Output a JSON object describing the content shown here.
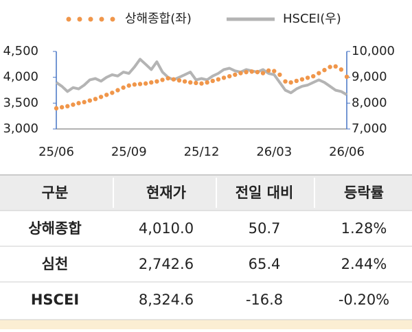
{
  "chart_data": {
    "type": "line",
    "categories": [
      "25/06",
      null,
      null,
      null,
      null,
      null,
      null,
      null,
      null,
      null,
      null,
      null,
      null,
      "25/09",
      null,
      null,
      null,
      null,
      null,
      null,
      null,
      null,
      null,
      null,
      null,
      null,
      "25/12",
      null,
      null,
      null,
      null,
      null,
      null,
      null,
      null,
      null,
      null,
      null,
      null,
      "26/03",
      null,
      null,
      null,
      null,
      null,
      null,
      null,
      null,
      null,
      null,
      null,
      null,
      "26/06"
    ],
    "series": [
      {
        "name": "상해종합(좌)",
        "color": "#f0964a",
        "style": "dots",
        "values": [
          3400,
          3420,
          3440,
          3470,
          3500,
          3520,
          3550,
          3580,
          3620,
          3660,
          3700,
          3750,
          3800,
          3840,
          3860,
          3870,
          3880,
          3900,
          3920,
          3950,
          3980,
          3960,
          3940,
          3920,
          3900,
          3890,
          3880,
          3900,
          3930,
          3960,
          3990,
          4020,
          4050,
          4080,
          4100,
          4110,
          4100,
          4080,
          4130,
          4120,
          4050,
          3920,
          3900,
          3930,
          3960,
          3990,
          4020,
          4080,
          4140,
          4200,
          4210,
          4150,
          4010
        ]
      },
      {
        "name": "HSCEI(우)",
        "color": "#b4b4b4",
        "style": "line",
        "axis": "y2",
        "values": [
          8800,
          8650,
          8450,
          8600,
          8550,
          8700,
          8900,
          8950,
          8850,
          9000,
          9100,
          9050,
          9200,
          9150,
          9400,
          9700,
          9500,
          9300,
          9600,
          9200,
          9000,
          8900,
          9000,
          9100,
          9200,
          8900,
          8950,
          8900,
          9050,
          9150,
          9300,
          9350,
          9250,
          9200,
          9300,
          9250,
          9200,
          9300,
          9150,
          9100,
          8800,
          8500,
          8400,
          8550,
          8650,
          8700,
          8800,
          8900,
          8800,
          8650,
          8500,
          8450,
          8325
        ]
      }
    ],
    "ylim": [
      3000,
      4500
    ],
    "yticks": [
      {
        "value": 3000,
        "label": "3,000"
      },
      {
        "value": 3500,
        "label": "3,500"
      },
      {
        "value": 4000,
        "label": "4,000"
      },
      {
        "value": 4500,
        "label": "4,500"
      }
    ],
    "y2lim": [
      7000,
      10000
    ],
    "y2ticks": [
      {
        "value": 7000,
        "label": "7,000"
      },
      {
        "value": 8000,
        "label": "8,000"
      },
      {
        "value": 9000,
        "label": "9,000"
      },
      {
        "value": 10000,
        "label": "10,000"
      }
    ],
    "axis_color": "#4472c4",
    "legend": "top"
  },
  "table": {
    "header": [
      "구분",
      "현재가",
      "전일 대비",
      "등락률"
    ],
    "rows": [
      [
        "상해종합",
        "4,010.0",
        "50.7",
        "1.28%"
      ],
      [
        "심천",
        "2,742.6",
        "65.4",
        "2.44%"
      ],
      [
        "HSCEI",
        "8,324.6",
        "-16.8",
        "-0.20%"
      ]
    ]
  }
}
